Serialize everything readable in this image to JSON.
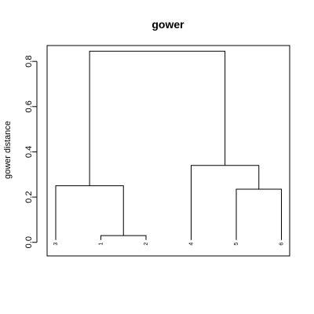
{
  "chart_data": {
    "type": "dendrogram",
    "title": "gower",
    "ylabel": "gower distance",
    "xlabel": "",
    "ylim": [
      -0.06,
      0.87
    ],
    "yticks": [
      0.0,
      0.2,
      0.4,
      0.6,
      0.8
    ],
    "ytick_labels": [
      "0.0",
      "0.2",
      "0.4",
      "0.6",
      "0.8"
    ],
    "leaves": [
      "3",
      "1",
      "2",
      "4",
      "5",
      "6"
    ],
    "merges": [
      {
        "left": "leaf:1",
        "right": "leaf:2",
        "height": 0.03
      },
      {
        "left": "leaf:5",
        "right": "leaf:6",
        "height": 0.235
      },
      {
        "left": "leaf:3",
        "right": "node:0",
        "height": 0.25
      },
      {
        "left": "leaf:4",
        "right": "node:1",
        "height": 0.34
      },
      {
        "left": "node:2",
        "right": "node:3",
        "height": 0.845
      }
    ]
  }
}
